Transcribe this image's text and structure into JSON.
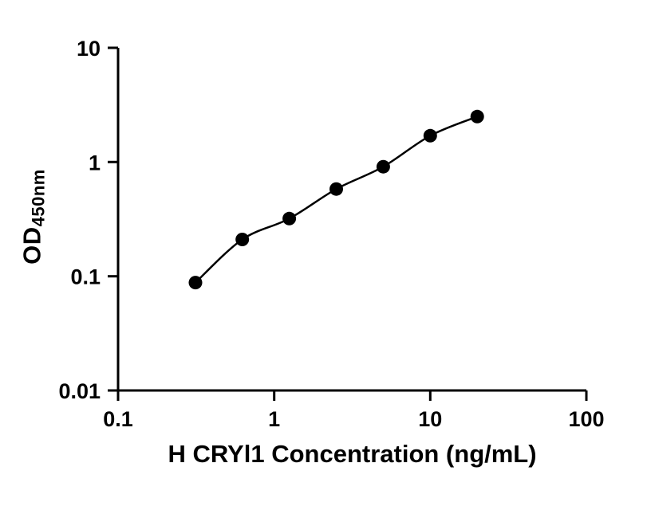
{
  "chart_data": {
    "type": "scatter",
    "title": "",
    "xlabel": "H CRYl1 Concentration (ng/mL)",
    "ylabel": "OD",
    "ylabel_subscript": "450nm",
    "x_scale": "log",
    "y_scale": "log",
    "xlim": [
      0.1,
      100
    ],
    "ylim": [
      0.01,
      10
    ],
    "grid": false,
    "legend": "none",
    "background_color": "#ffffff",
    "axis_color": "#000000",
    "x_ticks": [
      {
        "value": 0.1,
        "label": "0.1"
      },
      {
        "value": 1,
        "label": "1"
      },
      {
        "value": 10,
        "label": "10"
      },
      {
        "value": 100,
        "label": "100"
      }
    ],
    "y_ticks": [
      {
        "value": 0.01,
        "label": "0.01"
      },
      {
        "value": 0.1,
        "label": "0.1"
      },
      {
        "value": 1,
        "label": "1"
      },
      {
        "value": 10,
        "label": "10"
      }
    ],
    "series": [
      {
        "x": [
          0.313,
          0.625,
          1.25,
          2.5,
          5,
          10,
          20
        ],
        "y": [
          0.088,
          0.21,
          0.32,
          0.58,
          0.91,
          1.7,
          2.5
        ],
        "marker": "circle",
        "marker_color": "#000000",
        "line": "smooth",
        "line_color": "#000000"
      }
    ]
  }
}
